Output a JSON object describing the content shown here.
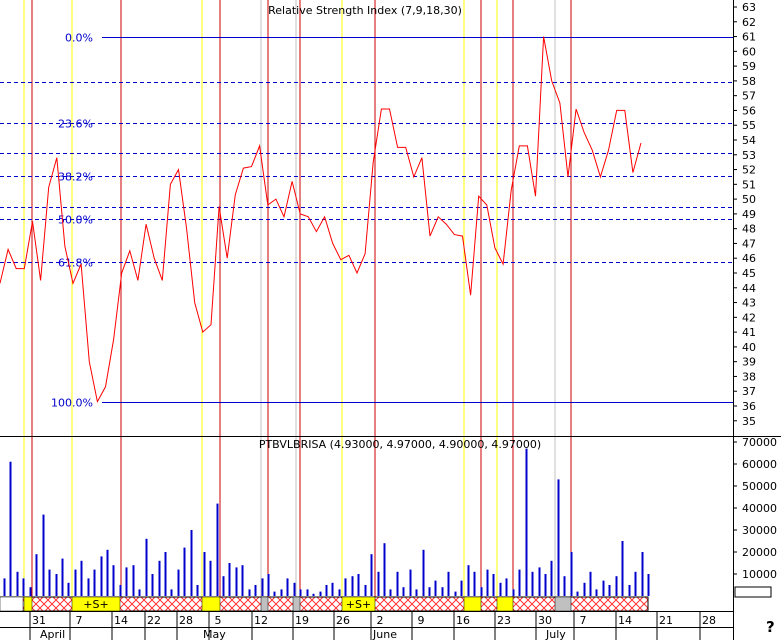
{
  "chart_data": [
    {
      "type": "line",
      "title": "Relative Strength Index (7,9,18,30)",
      "ylim": [
        34.5,
        63.5
      ],
      "yticks": [
        35,
        36,
        37,
        38,
        39,
        40,
        41,
        42,
        43,
        44,
        45,
        46,
        47,
        48,
        49,
        50,
        51,
        52,
        53,
        54,
        55,
        56,
        57,
        58,
        59,
        60,
        61,
        62,
        63
      ],
      "series": [
        {
          "values": [
            44.3,
            46.6,
            45.3,
            45.3,
            48.5,
            44.5,
            50.8,
            52.8,
            46.8,
            44.3,
            45.6,
            39.0,
            36.3,
            37.3,
            40.5,
            45.0,
            46.5,
            44.5,
            48.3,
            46.0,
            44.5,
            51.0,
            52.0,
            48.0,
            43.0,
            41.0,
            41.5,
            49.5,
            46.0,
            50.3,
            52.1,
            52.2,
            53.6,
            49.6,
            50.0,
            48.8,
            51.2,
            49.0,
            48.8,
            47.8,
            48.8,
            47.0,
            45.9,
            46.2,
            45.0,
            46.3,
            52.5,
            56.1,
            56.1,
            53.5,
            53.5,
            51.5,
            52.8,
            47.5,
            48.8,
            48.3,
            47.6,
            47.5,
            43.5,
            50.2,
            49.6,
            46.7,
            45.6,
            50.6,
            53.6,
            53.6,
            50.2,
            61.0,
            58.0,
            56.5,
            51.5,
            56.1,
            54.5,
            53.3,
            51.5,
            53.3,
            56.0,
            56.0,
            51.8,
            53.8
          ]
        }
      ],
      "fibonacci": {
        "high": 61.0,
        "low": 36.3,
        "levels": [
          {
            "label": "0.0%",
            "value": 61.0
          },
          {
            "label": "23.6%",
            "value": 55.17
          },
          {
            "label": "38.2%",
            "value": 51.57
          },
          {
            "label": "50.0%",
            "value": 48.65
          },
          {
            "label": "61.8%",
            "value": 45.73
          },
          {
            "label": "100.0%",
            "value": 36.3
          }
        ],
        "extra_dashed": [
          57.9,
          53.1,
          49.5
        ]
      }
    },
    {
      "type": "bar",
      "title": "PTBVLBRISA (4.93000, 4.97000, 4.90000, 4.97000)",
      "ylim": [
        0,
        72000
      ],
      "yticks": [
        10000,
        20000,
        30000,
        40000,
        50000,
        60000,
        70000
      ],
      "ytick_labels": [
        "10000",
        "20000",
        "30000",
        "40000",
        "50000",
        "60000",
        "70000"
      ],
      "values": [
        8000,
        61000,
        11000,
        8000,
        4000,
        19000,
        37000,
        12000,
        10000,
        17000,
        6000,
        12000,
        16000,
        8000,
        12000,
        18000,
        21000,
        14000,
        5000,
        13000,
        14000,
        3000,
        26000,
        10000,
        16000,
        20000,
        3000,
        12000,
        22000,
        30000,
        5000,
        20000,
        16000,
        42000,
        9000,
        15000,
        13000,
        14000,
        3000,
        5000,
        8000,
        10000,
        2000,
        3000,
        8000,
        6000,
        3000,
        3000,
        1000,
        2000,
        5000,
        6000,
        3000,
        8000,
        9000,
        10000,
        5000,
        19000,
        11000,
        24000,
        3000,
        11000,
        4000,
        12000,
        3000,
        21000,
        4000,
        7000,
        4000,
        11000,
        2000,
        7000,
        14000,
        11000,
        4000,
        12000,
        10000,
        6000,
        8000,
        3000,
        12000,
        67000,
        11000,
        13000,
        10000,
        16000,
        53000,
        9000,
        20000,
        2000,
        6000,
        11000,
        3000,
        7000,
        5000,
        9000,
        25000,
        5000,
        11000,
        20000,
        10000
      ]
    }
  ],
  "x_axis": {
    "day_ticks": [
      "31",
      "7",
      "14",
      "22",
      "28",
      "5",
      "12",
      "19",
      "26",
      "2",
      "9",
      "16",
      "23",
      "30",
      "7",
      "14",
      "21",
      "28"
    ],
    "month_labels": [
      "April",
      "May",
      "June",
      "July"
    ],
    "strip_labels": [
      "+S+",
      "+S+"
    ]
  },
  "colors": {
    "rsi_line": "#ff0000",
    "fib_line": "#0000cc",
    "volume_bar": "#0000cc",
    "red_cycle": "#cc0000",
    "yellow_cycle": "#ffff00",
    "grey_cycle": "#c0c0c0",
    "strip_yellow": "#ffff00",
    "strip_hatch": "#ff0000",
    "strip_grey": "#c0c0c0"
  },
  "extra": {
    "question_mark": "?"
  }
}
